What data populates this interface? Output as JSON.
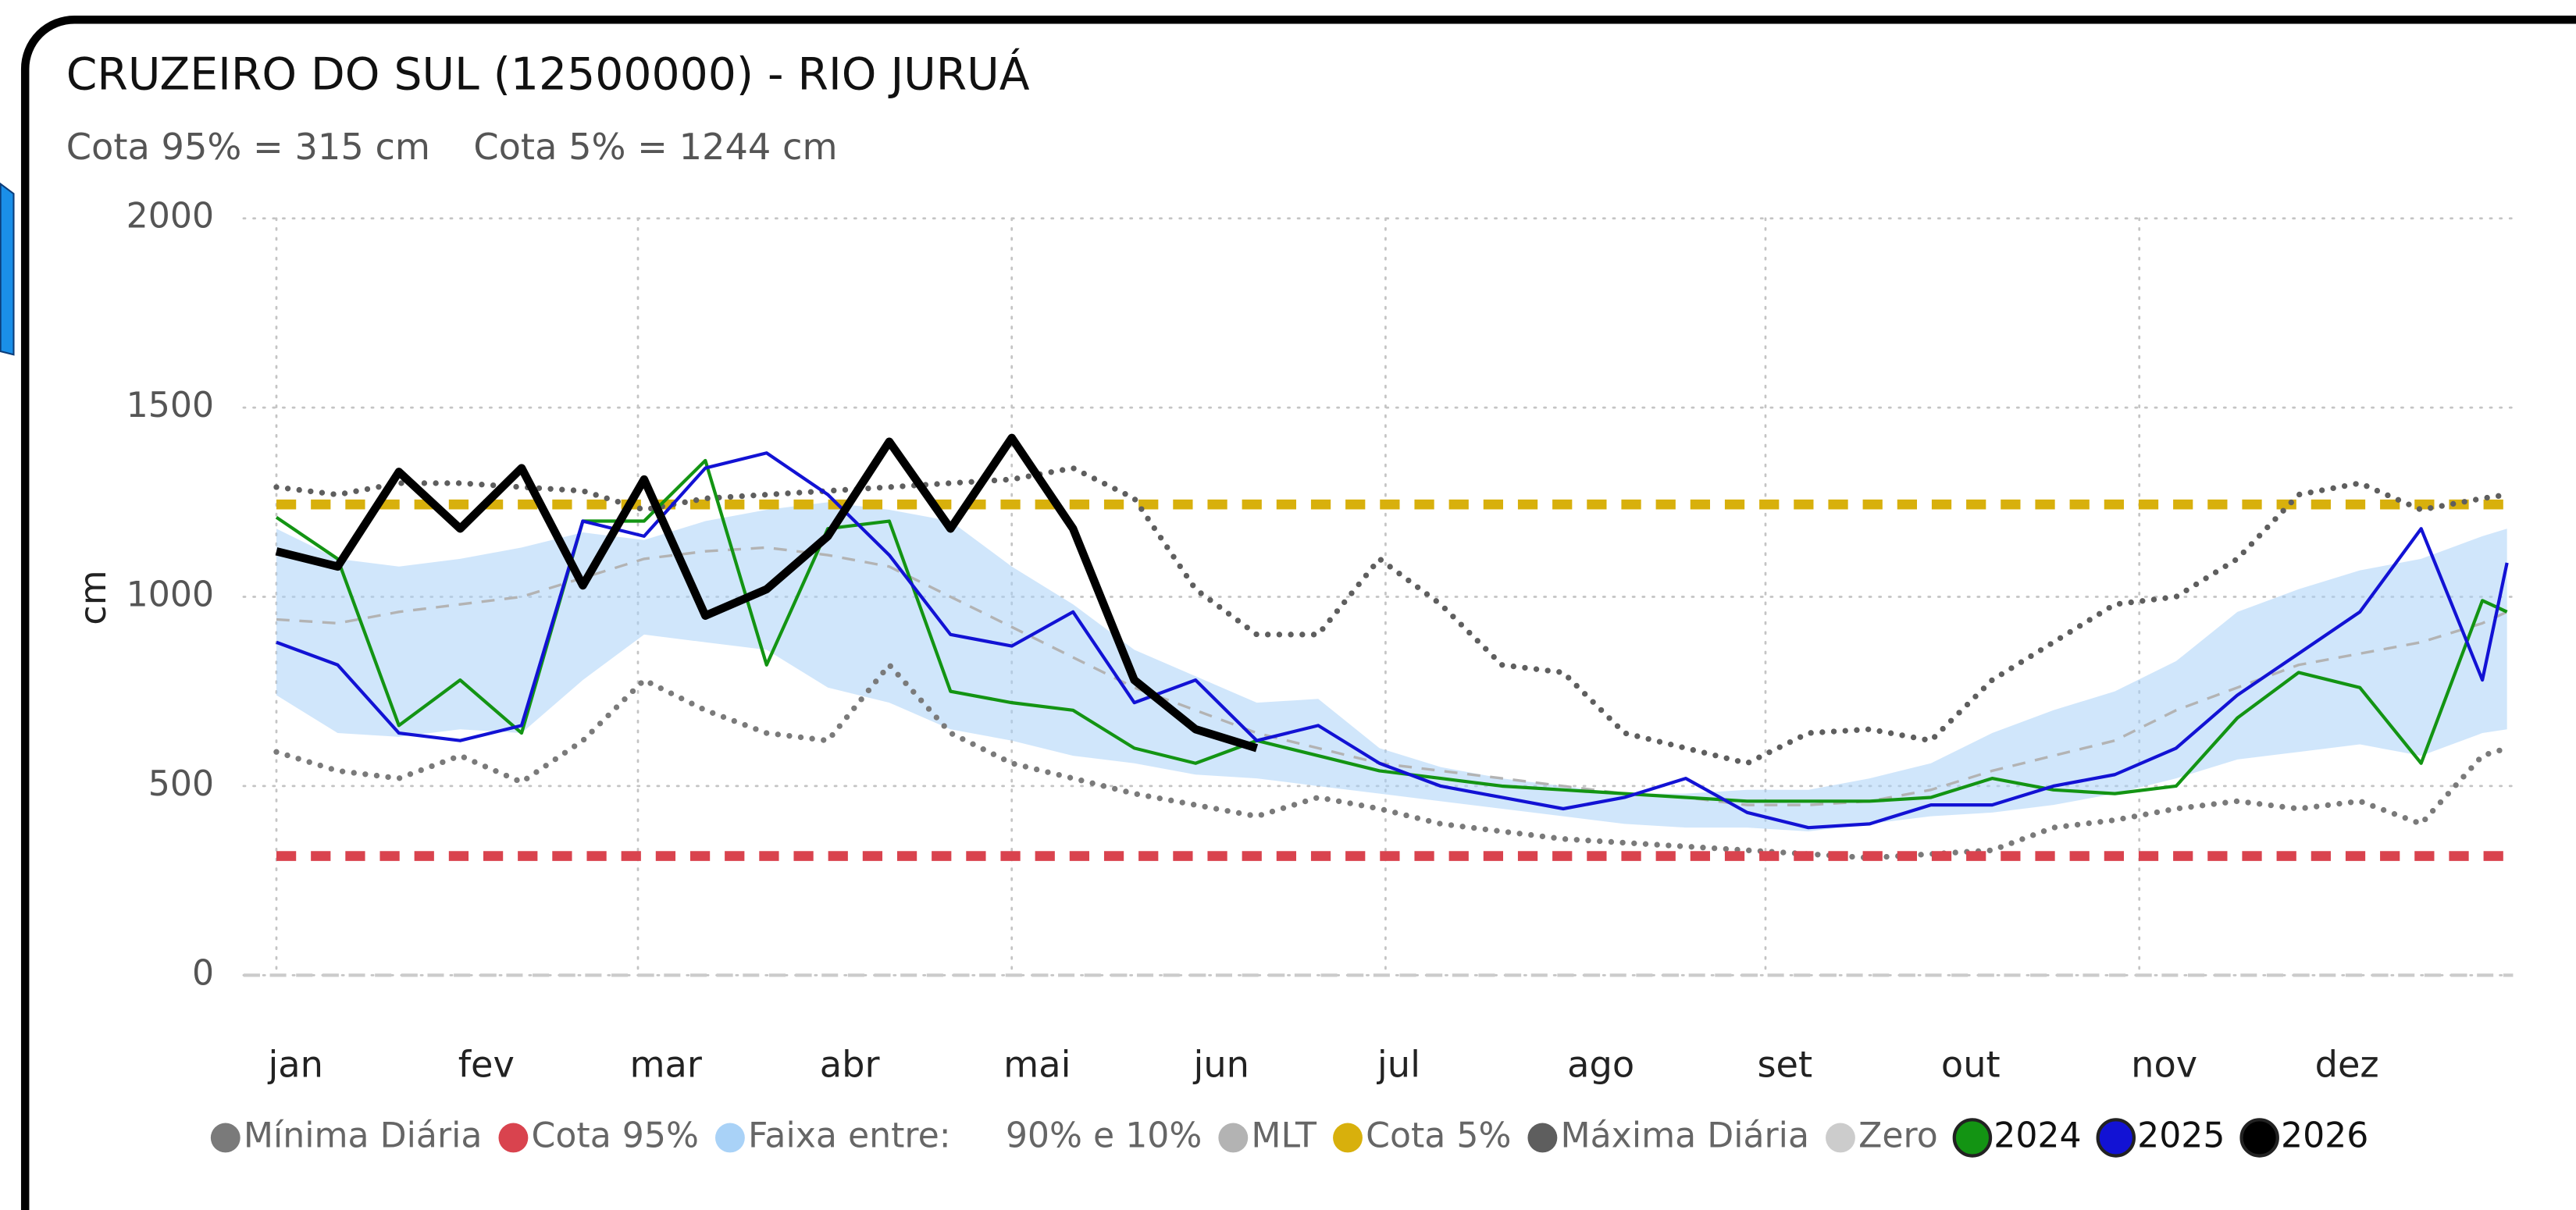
{
  "chart_data": {
    "type": "line",
    "title": "CRUZEIRO DO SUL (12500000) - RIO JURUÁ",
    "subtitle_1": "Cota 95% = 315 cm",
    "subtitle_2": "Cota 5% = 1244 cm",
    "y_label": "cm",
    "xlim": [
      1,
      366
    ],
    "ylim": [
      0,
      2000
    ],
    "yticks": [
      0,
      500,
      1000,
      1500,
      2000
    ],
    "xticks": [
      {
        "value": 1,
        "label": "jan"
      },
      {
        "value": 32,
        "label": "fev"
      },
      {
        "value": 60,
        "label": "mar"
      },
      {
        "value": 91,
        "label": "abr"
      },
      {
        "value": 121,
        "label": "mai"
      },
      {
        "value": 152,
        "label": "jun"
      },
      {
        "value": 182,
        "label": "jul"
      },
      {
        "value": 213,
        "label": "ago"
      },
      {
        "value": 244,
        "label": "set"
      },
      {
        "value": 274,
        "label": "out"
      },
      {
        "value": 305,
        "label": "nov"
      },
      {
        "value": 335,
        "label": "dez"
      }
    ],
    "grid": true,
    "x": [
      1,
      11,
      21,
      31,
      41,
      51,
      61,
      71,
      81,
      91,
      101,
      111,
      121,
      131,
      141,
      151,
      161,
      171,
      181,
      191,
      201,
      211,
      221,
      231,
      241,
      251,
      261,
      271,
      281,
      291,
      301,
      311,
      321,
      331,
      341,
      351,
      361,
      365
    ],
    "series": [
      {
        "name": "Mínima Diária",
        "color": "#7a7a7a",
        "style": "dotted",
        "values": [
          590,
          540,
          520,
          580,
          510,
          620,
          780,
          700,
          640,
          620,
          820,
          640,
          560,
          520,
          480,
          450,
          420,
          470,
          440,
          400,
          380,
          360,
          350,
          340,
          330,
          320,
          310,
          320,
          330,
          390,
          410,
          440,
          460,
          440,
          460,
          400,
          580,
          600
        ]
      },
      {
        "name": "Cota 95%",
        "color": "#d9434e",
        "style": "level",
        "level": 315
      },
      {
        "name": "Faixa entre:     90% e 10%",
        "color": "#a9d2f7",
        "style": "band",
        "values": [
          1180,
          1100,
          1080,
          1100,
          1130,
          1170,
          1150,
          1200,
          1230,
          1250,
          1230,
          1200,
          1080,
          980,
          860,
          790,
          720,
          730,
          600,
          550,
          520,
          500,
          480,
          480,
          490,
          490,
          520,
          560,
          640,
          700,
          750,
          830,
          960,
          1020,
          1070,
          1100,
          1160,
          1180
        ],
        "lower": [
          740,
          640,
          630,
          650,
          640,
          780,
          900,
          880,
          860,
          760,
          720,
          650,
          620,
          580,
          560,
          530,
          520,
          500,
          480,
          460,
          440,
          420,
          400,
          390,
          390,
          380,
          400,
          420,
          430,
          450,
          480,
          520,
          570,
          590,
          610,
          580,
          640,
          650
        ]
      },
      {
        "name": "MLT",
        "color": "#b3b3b3",
        "style": "dashed",
        "values": [
          940,
          930,
          960,
          980,
          1000,
          1050,
          1100,
          1120,
          1130,
          1110,
          1080,
          1000,
          920,
          840,
          760,
          700,
          640,
          600,
          560,
          540,
          520,
          500,
          480,
          470,
          450,
          450,
          460,
          490,
          540,
          580,
          620,
          700,
          760,
          820,
          850,
          880,
          930,
          960
        ]
      },
      {
        "name": "Cota 5%",
        "color": "#d8b00c",
        "style": "level",
        "level": 1244
      },
      {
        "name": "Máxima Diária",
        "color": "#5e5e5e",
        "style": "dotted",
        "values": [
          1290,
          1270,
          1300,
          1300,
          1290,
          1280,
          1230,
          1260,
          1270,
          1280,
          1290,
          1300,
          1310,
          1340,
          1260,
          1020,
          900,
          900,
          1100,
          980,
          820,
          800,
          640,
          600,
          560,
          640,
          650,
          620,
          780,
          880,
          980,
          1000,
          1100,
          1270,
          1300,
          1230,
          1260,
          1270
        ]
      },
      {
        "name": "Zero",
        "color": "#cccccc",
        "style": "thin-level",
        "level": 0
      },
      {
        "name": "2024",
        "color": "#139413",
        "style": "solid",
        "width": 2,
        "values": [
          1210,
          1100,
          660,
          780,
          640,
          1200,
          1200,
          1360,
          820,
          1180,
          1200,
          750,
          720,
          700,
          600,
          560,
          620,
          580,
          540,
          520,
          500,
          490,
          480,
          470,
          460,
          460,
          460,
          470,
          520,
          490,
          480,
          500,
          680,
          800,
          760,
          560,
          990,
          960
        ]
      },
      {
        "name": "2025",
        "color": "#1212d4",
        "style": "solid",
        "width": 2,
        "values": [
          880,
          820,
          640,
          620,
          660,
          1200,
          1160,
          1340,
          1380,
          1270,
          1110,
          900,
          870,
          960,
          720,
          780,
          620,
          660,
          560,
          500,
          470,
          440,
          470,
          520,
          430,
          390,
          400,
          450,
          450,
          500,
          530,
          600,
          740,
          850,
          960,
          1180,
          780,
          1090
        ]
      },
      {
        "name": "2026",
        "color": "#000000",
        "style": "solid",
        "width": 5,
        "values": [
          1120,
          1080,
          1330,
          1180,
          1340,
          1030,
          1310,
          950,
          1020,
          1160,
          1410,
          1180,
          1420,
          1180,
          780,
          650,
          600,
          null,
          null,
          null,
          null,
          null,
          null,
          null,
          null,
          null,
          null,
          null,
          null,
          null,
          null,
          null,
          null,
          null,
          null,
          null,
          null,
          null
        ]
      }
    ]
  }
}
